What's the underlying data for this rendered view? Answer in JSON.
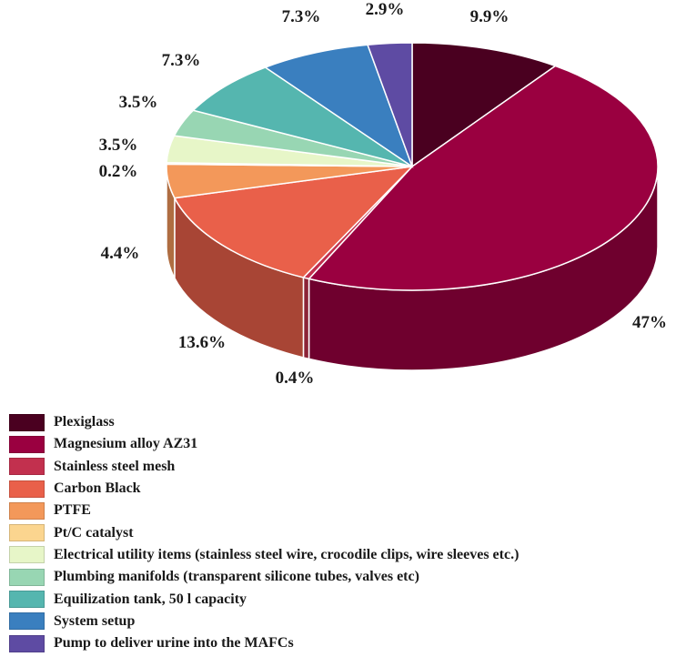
{
  "chart_data": {
    "type": "pie",
    "title": "",
    "slices": [
      {
        "label": "Plexiglass",
        "value": 9.9,
        "text": "9.9%",
        "color": "#4a0020"
      },
      {
        "label": "Magnesium alloy AZ31",
        "value": 47,
        "text": "47%",
        "color": "#9a0040"
      },
      {
        "label": "Stainless steel mesh",
        "value": 0.4,
        "text": "0.4%",
        "color": "#c2304e"
      },
      {
        "label": "Carbon Black",
        "value": 13.6,
        "text": "13.6%",
        "color": "#e9604a"
      },
      {
        "label": "PTFE",
        "value": 4.4,
        "text": "4.4%",
        "color": "#f3985a"
      },
      {
        "label": "Pt/C catalyst",
        "value": 0.2,
        "text": "0.2%",
        "color": "#fbd58f"
      },
      {
        "label": "Electrical utility items (stainless steel wire, crocodile clips, wire sleeves etc.)",
        "value": 3.5,
        "text": "3.5%",
        "color": "#e7f6c8"
      },
      {
        "label": "Plumbing manifolds (transparent silicone tubes, valves etc)",
        "value": 3.5,
        "text": "3.5%",
        "color": "#98d6b3"
      },
      {
        "label": "Equilization tank, 50 l capacity",
        "value": 7.3,
        "text": "7.3%",
        "color": "#55b6af"
      },
      {
        "label": "System setup",
        "value": 7.3,
        "text": "7.3%",
        "color": "#3a7fbf"
      },
      {
        "label": "Pump to deliver urine into the MAFCs",
        "value": 2.9,
        "text": "2.9%",
        "color": "#5e4ba3"
      }
    ],
    "legend_position": "bottom"
  }
}
